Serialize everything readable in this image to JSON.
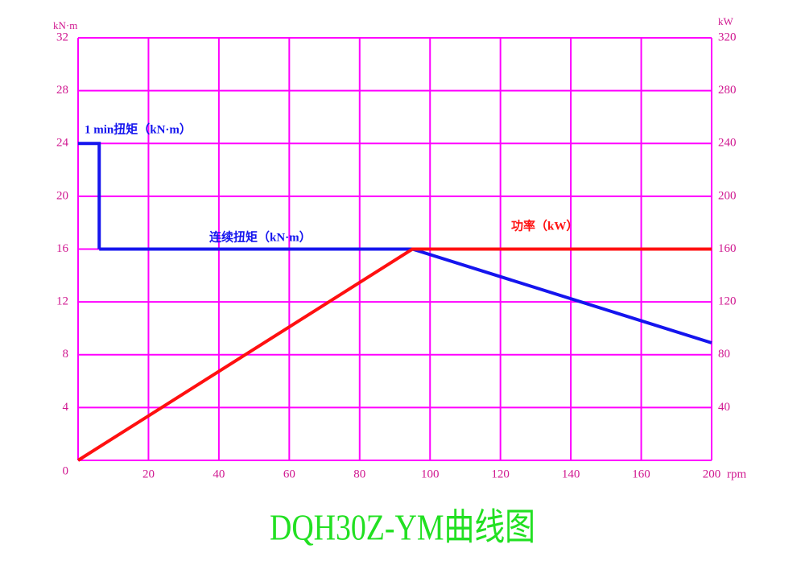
{
  "chart_data": {
    "type": "line",
    "title": "DQH30Z-YM曲线图",
    "y_label": "kN·m",
    "y2_label": "kW",
    "x_label": "rpm",
    "xlim": [
      0,
      200
    ],
    "xticks": [
      20,
      40,
      60,
      80,
      100,
      120,
      140,
      160,
      200
    ],
    "ylim": [
      0,
      32
    ],
    "yticks": [
      0,
      4,
      8,
      12,
      16,
      20,
      24,
      28,
      32
    ],
    "y2lim": [
      0,
      320
    ],
    "y2ticks": [
      40,
      80,
      120,
      160,
      200,
      240,
      280,
      320
    ],
    "grid": true,
    "grid_color": "#ff00ff",
    "series": [
      {
        "name": "1 min扭矩（kN·m）",
        "color": "#1515ee",
        "x": [
          0,
          6,
          6
        ],
        "values": [
          24,
          24,
          16
        ]
      },
      {
        "name": "连续扭矩（kN·m）",
        "color": "#1515ee",
        "x": [
          6,
          95,
          200
        ],
        "values": [
          16,
          16,
          8.9
        ]
      },
      {
        "name": "功率（kW）",
        "color": "#ff1010",
        "axis": "y2",
        "x": [
          0,
          95,
          200
        ],
        "values": [
          0,
          160,
          160
        ]
      }
    ]
  }
}
